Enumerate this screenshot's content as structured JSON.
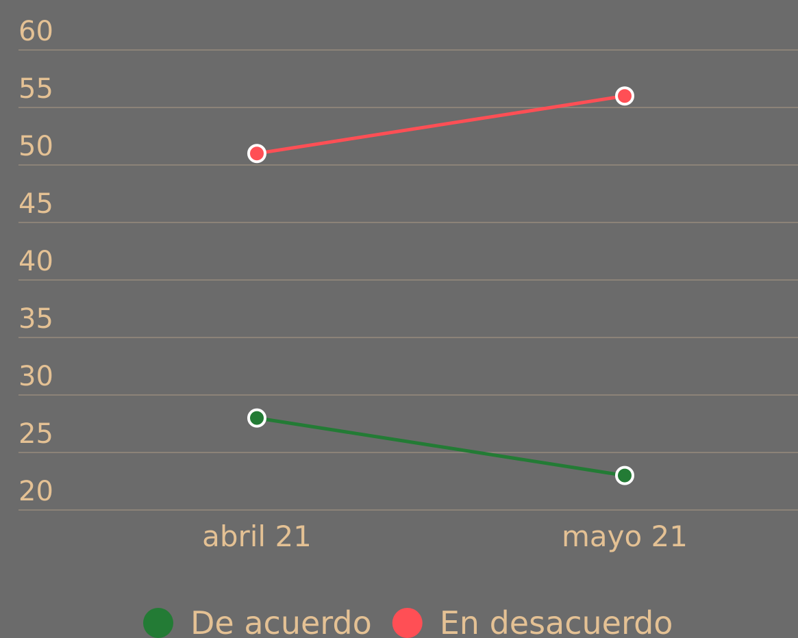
{
  "chart_data": {
    "type": "line",
    "categories": [
      "abril 21",
      "mayo 21"
    ],
    "series": [
      {
        "name": "De acuerdo",
        "color": "#237b35",
        "values": [
          28,
          23
        ]
      },
      {
        "name": "En desacuerdo",
        "color": "#ff4f55",
        "values": [
          51,
          56
        ]
      }
    ],
    "ylim": [
      20,
      60
    ],
    "yticks": [
      20,
      25,
      30,
      35,
      40,
      45,
      50,
      55,
      60
    ],
    "grid": true,
    "legend": "bottom"
  }
}
